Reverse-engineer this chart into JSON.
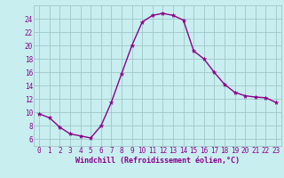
{
  "x": [
    0,
    1,
    2,
    3,
    4,
    5,
    6,
    7,
    8,
    9,
    10,
    11,
    12,
    13,
    14,
    15,
    16,
    17,
    18,
    19,
    20,
    21,
    22,
    23
  ],
  "y": [
    9.8,
    9.2,
    7.8,
    6.8,
    6.5,
    6.2,
    8.0,
    11.5,
    15.8,
    20.0,
    23.5,
    24.5,
    24.8,
    24.5,
    23.8,
    19.2,
    18.0,
    16.0,
    14.2,
    13.0,
    12.5,
    12.3,
    12.2,
    11.5
  ],
  "line_color": "#8B008B",
  "marker": "*",
  "marker_size": 3.5,
  "bg_color": "#C8EEF0",
  "grid_color": "#A0C8C8",
  "xlabel": "Windchill (Refroidissement éolien,°C)",
  "xlabel_color": "#8B008B",
  "tick_color": "#8B008B",
  "xlim": [
    -0.5,
    23.5
  ],
  "ylim": [
    5.0,
    26.0
  ],
  "yticks": [
    6,
    8,
    10,
    12,
    14,
    16,
    18,
    20,
    22,
    24
  ],
  "xticks": [
    0,
    1,
    2,
    3,
    4,
    5,
    6,
    7,
    8,
    9,
    10,
    11,
    12,
    13,
    14,
    15,
    16,
    17,
    18,
    19,
    20,
    21,
    22,
    23
  ],
  "xlabel_fontsize": 6.0,
  "tick_fontsize": 5.5,
  "linewidth": 1.0
}
